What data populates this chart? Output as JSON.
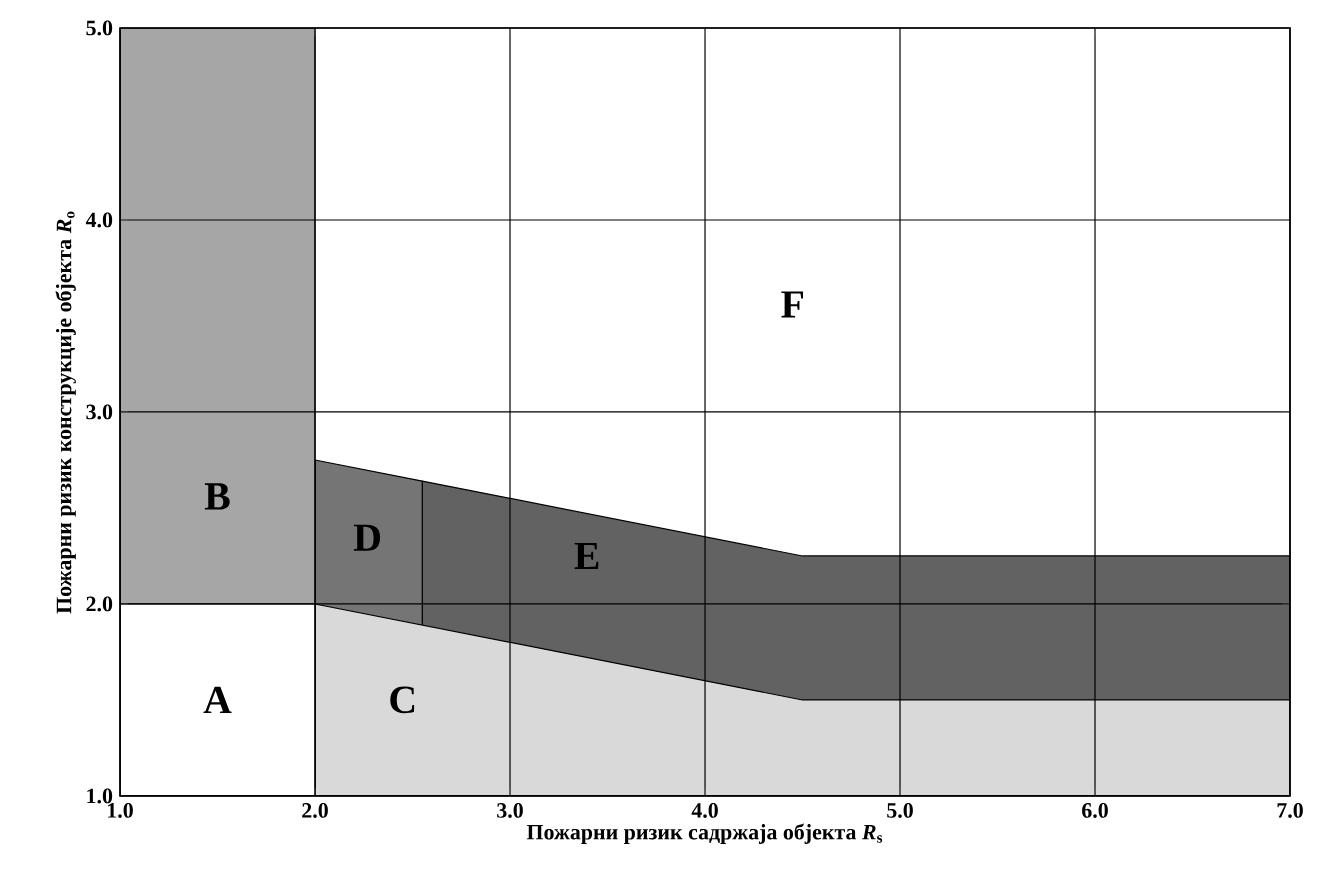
{
  "chart_data": {
    "type": "area",
    "xlabel": "Пожарни ризик садржаја објекта *R*$_{s}$",
    "ylabel": "Пожарни ризик конструкције објекта *R*$_{o}$",
    "xlim": [
      1,
      7
    ],
    "ylim": [
      1,
      5
    ],
    "xticks": [
      {
        "value": 1,
        "label": "1.0"
      },
      {
        "value": 2,
        "label": "2.0"
      },
      {
        "value": 3,
        "label": "3.0"
      },
      {
        "value": 4,
        "label": "4.0"
      },
      {
        "value": 5,
        "label": "5.0"
      },
      {
        "value": 6,
        "label": "6.0"
      },
      {
        "value": 7,
        "label": "7.0"
      }
    ],
    "yticks": [
      {
        "value": 1,
        "label": "1.0"
      },
      {
        "value": 2,
        "label": "2.0"
      },
      {
        "value": 3,
        "label": "3.0"
      },
      {
        "value": 4,
        "label": "4.0"
      },
      {
        "value": 5,
        "label": "5.0"
      }
    ],
    "grid": true,
    "series": [
      {
        "name": "E",
        "color": "#626262",
        "x": [
          2.55,
          4.5,
          7
        ],
        "values": [
          2.64,
          2.25,
          2.25
        ]
      },
      {
        "name": "D",
        "color": "#757575",
        "x": [
          2,
          2.55
        ],
        "values": [
          2.75,
          2.64
        ]
      },
      {
        "name": "C",
        "color": "#d9d9d9",
        "x": [
          2,
          4.5,
          7
        ],
        "values": [
          2,
          1.5,
          1.5
        ]
      },
      {
        "name": "B",
        "color": "#a6a6a6",
        "x": [
          1,
          2
        ],
        "values": [
          5,
          5
        ]
      },
      {
        "color": "#ffffff",
        "x": [
          1,
          2
        ],
        "values": [
          2,
          2
        ]
      }
    ],
    "annotations": [
      "A",
      "F"
    ]
  }
}
